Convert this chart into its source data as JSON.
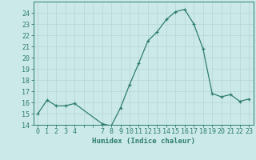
{
  "xlabel": "Humidex (Indice chaleur)",
  "x": [
    0,
    1,
    2,
    3,
    4,
    7,
    8,
    9,
    10,
    11,
    12,
    13,
    14,
    15,
    16,
    17,
    18,
    19,
    20,
    21,
    22,
    23
  ],
  "y": [
    15.0,
    16.2,
    15.7,
    15.7,
    15.9,
    14.1,
    13.9,
    15.5,
    17.6,
    19.5,
    21.5,
    22.3,
    23.4,
    24.1,
    24.3,
    23.0,
    20.8,
    16.8,
    16.5,
    16.7,
    16.1,
    16.3
  ],
  "line_color": "#2e7d6e",
  "marker": "+",
  "bg_color": "#cce9e9",
  "grid_color": "#b8d8d8",
  "axis_color": "#2e7d6e",
  "tick_color": "#2e7d6e",
  "ylim": [
    14,
    25
  ],
  "yticks": [
    14,
    15,
    16,
    17,
    18,
    19,
    20,
    21,
    22,
    23,
    24
  ],
  "all_xticks": [
    0,
    1,
    2,
    3,
    4,
    5,
    6,
    7,
    8,
    9,
    10,
    11,
    12,
    13,
    14,
    15,
    16,
    17,
    18,
    19,
    20,
    21,
    22,
    23
  ],
  "labeled_xticks": [
    0,
    1,
    2,
    3,
    4,
    7,
    8,
    9,
    10,
    11,
    12,
    13,
    14,
    15,
    16,
    17,
    18,
    19,
    20,
    21,
    22,
    23
  ],
  "xtick_labels": [
    "0",
    "1",
    "2",
    "3",
    "4",
    "7",
    "8",
    "9",
    "10",
    "11",
    "12",
    "13",
    "14",
    "15",
    "16",
    "17",
    "18",
    "19",
    "20",
    "21",
    "22",
    "23"
  ],
  "label_fontsize": 6.5,
  "tick_fontsize": 6.0
}
